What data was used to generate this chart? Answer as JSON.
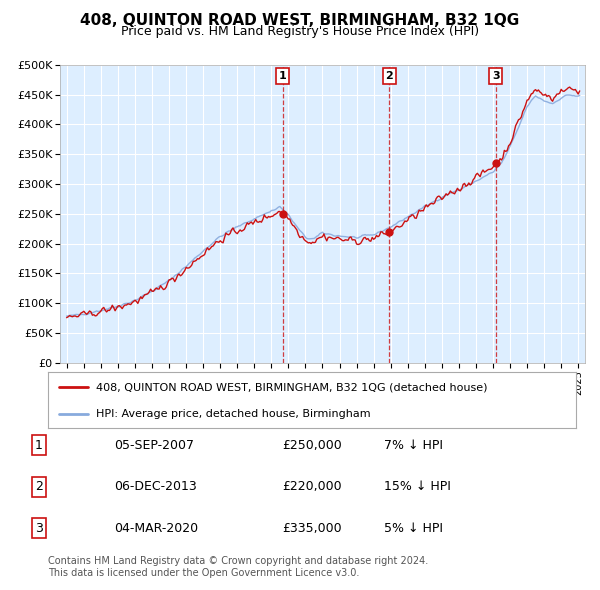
{
  "title": "408, QUINTON ROAD WEST, BIRMINGHAM, B32 1QG",
  "subtitle": "Price paid vs. HM Land Registry's House Price Index (HPI)",
  "ylim": [
    0,
    500000
  ],
  "yticks": [
    0,
    50000,
    100000,
    150000,
    200000,
    250000,
    300000,
    350000,
    400000,
    450000,
    500000
  ],
  "ytick_labels": [
    "£0",
    "£50K",
    "£100K",
    "£150K",
    "£200K",
    "£250K",
    "£300K",
    "£350K",
    "£400K",
    "£450K",
    "£500K"
  ],
  "xlim_start": 1994.6,
  "xlim_end": 2025.4,
  "plot_bg_color": "#ddeeff",
  "outer_bg_color": "#f0f4f8",
  "grid_color": "#ffffff",
  "red_line_color": "#cc1111",
  "blue_line_color": "#88aadd",
  "sale_box_color": "#cc1111",
  "transactions": [
    {
      "num": 1,
      "year": 2007.67,
      "price": 250000,
      "date": "05-SEP-2007",
      "pct": "7%",
      "dir": "↓"
    },
    {
      "num": 2,
      "year": 2013.92,
      "price": 220000,
      "date": "06-DEC-2013",
      "pct": "15%",
      "dir": "↓"
    },
    {
      "num": 3,
      "year": 2020.17,
      "price": 335000,
      "date": "04-MAR-2020",
      "pct": "5%",
      "dir": "↓"
    }
  ],
  "legend_red_label": "408, QUINTON ROAD WEST, BIRMINGHAM, B32 1QG (detached house)",
  "legend_blue_label": "HPI: Average price, detached house, Birmingham",
  "footer_line1": "Contains HM Land Registry data © Crown copyright and database right 2024.",
  "footer_line2": "This data is licensed under the Open Government Licence v3.0.",
  "table_rows": [
    [
      "1",
      "05-SEP-2007",
      "£250,000",
      "7% ↓ HPI"
    ],
    [
      "2",
      "06-DEC-2013",
      "£220,000",
      "15% ↓ HPI"
    ],
    [
      "3",
      "04-MAR-2020",
      "£335,000",
      "5% ↓ HPI"
    ]
  ]
}
